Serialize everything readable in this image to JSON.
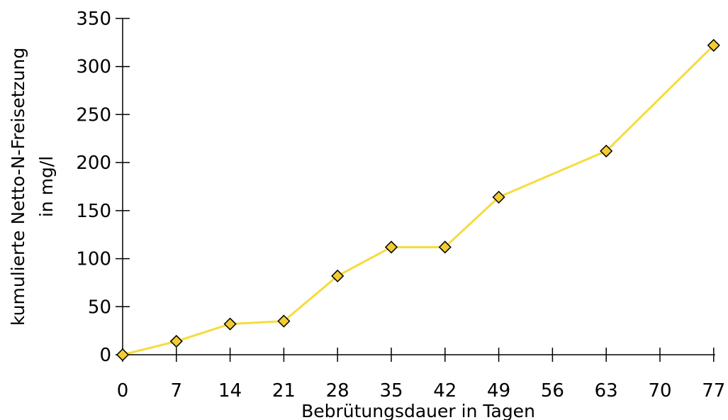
{
  "chart_data": {
    "type": "line",
    "xlabel": "Bebrütungsdauer in Tagen",
    "ylabel_lines": [
      "kumulierte Netto-N-Freisetzung",
      "in mg/l"
    ],
    "x_ticks": [
      "0",
      "7",
      "14",
      "21",
      "28",
      "35",
      "42",
      "49",
      "56",
      "63",
      "70",
      "77"
    ],
    "y_ticks": [
      "0",
      "50",
      "100",
      "150",
      "200",
      "250",
      "300",
      "350"
    ],
    "ylim": [
      0,
      350
    ],
    "grid": false,
    "series": [
      {
        "color": "#F5DC3C",
        "marker_color": "#F2CC30",
        "marker": "diamond",
        "points": [
          {
            "x": 0,
            "y": 0
          },
          {
            "x": 7,
            "y": 14
          },
          {
            "x": 14,
            "y": 32
          },
          {
            "x": 21,
            "y": 35
          },
          {
            "x": 28,
            "y": 82
          },
          {
            "x": 35,
            "y": 112
          },
          {
            "x": 42,
            "y": 112
          },
          {
            "x": 49,
            "y": 164
          },
          {
            "x": 63,
            "y": 212
          },
          {
            "x": 77,
            "y": 322
          }
        ]
      }
    ]
  }
}
